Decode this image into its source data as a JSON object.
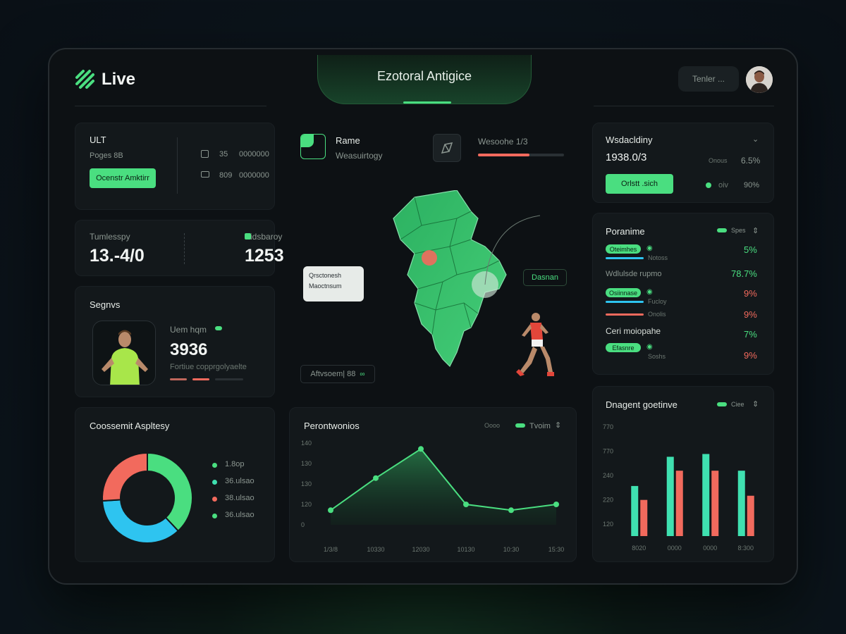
{
  "header": {
    "logo_text": "Live",
    "title": "Ezotoral Antigice",
    "user_button": "Tenler ...",
    "accent": "#4ade80"
  },
  "left": {
    "card1": {
      "title": "ULT",
      "subtitle": "Poges  8B",
      "button_label": "Ocenstr Amktirr",
      "rows": [
        {
          "a": "35",
          "b": "0000000"
        },
        {
          "a": "809",
          "b": "0000000"
        }
      ]
    },
    "card2": {
      "left_label": "Tumlesspy",
      "left_value": "13.-4/0",
      "right_label": "Eidsbaroy",
      "right_value": "1253"
    },
    "card3": {
      "title": "Segnvs",
      "player_name": "Uem hqm",
      "player_value": "3936",
      "player_caption": "Fortiue copprgolyaelte"
    },
    "card4": {
      "title": "Coossemit Aspltesy",
      "legend": [
        {
          "label": "1.8op",
          "color": "#4ade80"
        },
        {
          "label": "36.ulsao",
          "color": "#3fe0b0"
        },
        {
          "label": "38.ulsao",
          "color": "#f26a5d"
        },
        {
          "label": "36.ulsao",
          "color": "#4ade80"
        }
      ],
      "donut": [
        {
          "value": 38,
          "color": "#4ade80"
        },
        {
          "value": 36,
          "color": "#2ec4f0"
        },
        {
          "value": 26,
          "color": "#f26a5d"
        }
      ]
    }
  },
  "center": {
    "top": {
      "label1": "Rame",
      "sub1": "Weasuirtogy",
      "label2": "Wesoohe 1/3",
      "progress2": 0.6
    },
    "map": {
      "tooltip_line1": "Qrsctonesh",
      "tooltip_line2": "Maoctnsum",
      "tag_right": "Dasnan",
      "tag_bottom": "Aftvsoem| 88",
      "tag_bottom_icon": "link-icon"
    },
    "perf": {
      "title": "Perontwonios",
      "legend_label": "Tvoim",
      "legend_prefix": "Oooo"
    }
  },
  "right": {
    "card1": {
      "title": "Wsdacldiny",
      "value": "1938.0/3",
      "right_label": "Onous",
      "right_value": "6.5%",
      "button_label": "Orlstt .sich",
      "extra_label": "oiv",
      "extra_value": "90%"
    },
    "card2": {
      "title": "Poranime",
      "header_badge": "Spes",
      "rows": [
        {
          "pill": "Oteimhes",
          "caption": "Notoss",
          "value": "5%",
          "color": "green",
          "bar": "#2ec4f0"
        },
        {
          "label": "Wdlulsde rupmo",
          "value": "78.7%",
          "color": "green"
        },
        {
          "pill": "Osiinnase",
          "caption": "Fucloy",
          "value": "9%",
          "color": "red",
          "bar": "#2ec4f0"
        },
        {
          "caption": "Onolis",
          "value": "9%",
          "color": "red",
          "bar": "#f26a5d"
        },
        {
          "label": "Ceri moiopahe",
          "value": "7%",
          "color": "green"
        },
        {
          "pill": "Efasnre",
          "caption": "Soshs",
          "value": "9%",
          "color": "red"
        }
      ]
    },
    "card3": {
      "title": "Dnagent goetinve",
      "header_badge": "Ciee"
    }
  },
  "chart_data": [
    {
      "type": "area",
      "title": "Perontwonios",
      "x": [
        "1/3/8",
        "10330",
        "12030",
        "10130",
        "10:30",
        "15:30"
      ],
      "values": [
        25,
        80,
        130,
        35,
        25,
        35
      ],
      "yticks": [
        "140",
        "130",
        "130",
        "120",
        "0"
      ],
      "ylim": [
        0,
        140
      ],
      "color": "#4ade80"
    },
    {
      "type": "bar",
      "title": "Dnagent goetinve",
      "categories": [
        "8020",
        "0000",
        "0000",
        "8:300"
      ],
      "yticks": [
        "770",
        "770",
        "240",
        "220",
        "120"
      ],
      "ylim": [
        0,
        800
      ],
      "series": [
        {
          "color": "#3fe0b0",
          "values": [
            360,
            570,
            590,
            470
          ]
        },
        {
          "color": "#f26a5d",
          "values": [
            260,
            470,
            470,
            290
          ]
        }
      ]
    }
  ]
}
